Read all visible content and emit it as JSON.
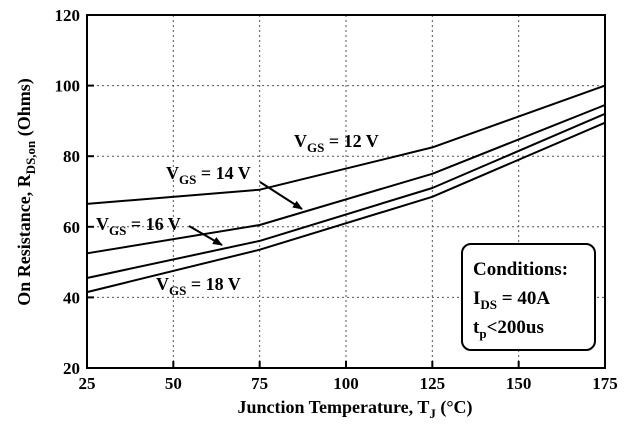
{
  "chart_data": {
    "type": "line",
    "xlabel_main": "Junction Temperature, T",
    "xlabel_sub": "J",
    "xlabel_unit": " (°C)",
    "ylabel_main": "On Resistance, R",
    "ylabel_sub": "DS,on",
    "ylabel_unit": " (Ohms)",
    "xlim": [
      25,
      175
    ],
    "ylim": [
      20,
      120
    ],
    "xticks": [
      "25",
      "50",
      "75",
      "100",
      "125",
      "150",
      "175"
    ],
    "yticks": [
      "20",
      "40",
      "60",
      "80",
      "100",
      "120"
    ],
    "grid": true,
    "x": [
      25,
      75,
      125,
      175
    ],
    "series": [
      {
        "name": "V_GS = 12 V",
        "values": [
          66.5,
          70.5,
          82.5,
          100
        ]
      },
      {
        "name": "V_GS = 14 V",
        "values": [
          52.5,
          60.5,
          75,
          94.5
        ]
      },
      {
        "name": "V_GS = 16 V",
        "values": [
          45.5,
          56,
          71,
          92
        ]
      },
      {
        "name": "V_GS = 18 V",
        "values": [
          41.5,
          53.5,
          68.5,
          89.5
        ]
      }
    ],
    "annotations": [
      {
        "main": "V",
        "sub": "GS",
        "rest": " = 12 V"
      },
      {
        "main": "V",
        "sub": "GS",
        "rest": " = 14 V"
      },
      {
        "main": "V",
        "sub": "GS",
        "rest": " = 16 V"
      },
      {
        "main": "V",
        "sub": "GS",
        "rest": " = 18 V"
      }
    ],
    "conditions": {
      "title": "Conditions:",
      "line1_main": "I",
      "line1_sub": "DS",
      "line1_rest": " = 40A",
      "line2_main": "t",
      "line2_sub": "p",
      "line2_rest": "<200us"
    },
    "colors": {
      "line": "#000000",
      "grid": "#555555",
      "background": "#ffffff"
    }
  }
}
